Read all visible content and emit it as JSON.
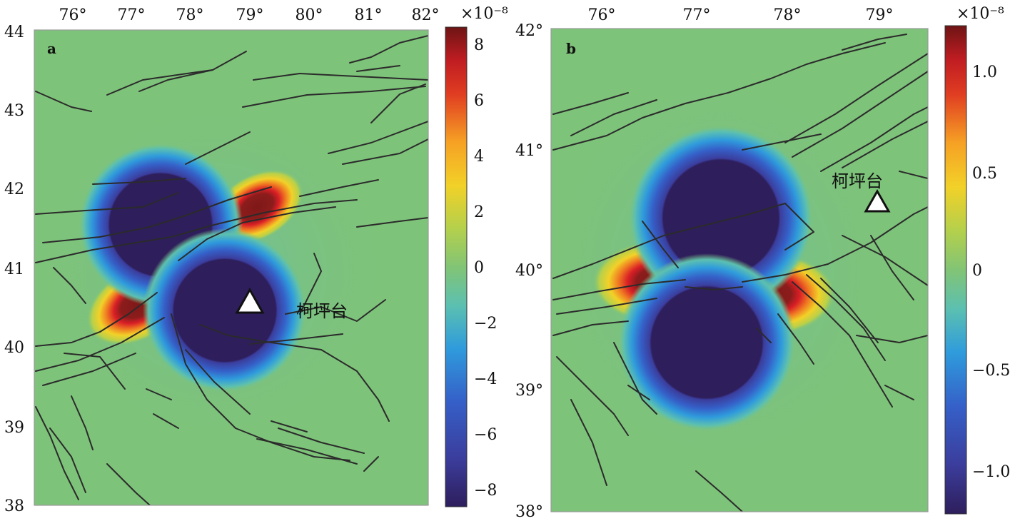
{
  "panels": [
    {
      "letter": "a",
      "lon_ticks": [
        "76°",
        "77°",
        "78°",
        "79°",
        "80°",
        "81°",
        "82°"
      ],
      "lat_ticks": [
        "44",
        "43",
        "42",
        "41",
        "40",
        "39",
        "38"
      ],
      "station": {
        "name": "柯坪台",
        "lon": 79.05,
        "lat": 40.55
      },
      "colorbar": {
        "exponent": "×10⁻⁸",
        "ticks": [
          "8",
          "6",
          "4",
          "2",
          "0",
          "−2",
          "−4",
          "−6",
          "−8"
        ]
      }
    },
    {
      "letter": "b",
      "lon_ticks": [
        "76°",
        "77°",
        "78°",
        "79°"
      ],
      "lat_ticks": [
        "42°",
        "41°",
        "40°",
        "39°",
        "38°"
      ],
      "station": {
        "name": "柯坪台",
        "lon": 79.05,
        "lat": 40.6
      },
      "colorbar": {
        "exponent": "×10⁻⁸",
        "ticks": [
          "1.0",
          "0.5",
          "0",
          "−0.5",
          "−1.0"
        ]
      }
    }
  ],
  "colors": {
    "background": "#7ec37a",
    "colormap": [
      "#2e1e5c",
      "#3b3d9c",
      "#3560c8",
      "#2f8fdc",
      "#35b0d6",
      "#5cc0a8",
      "#8ac771",
      "#c4d345",
      "#f2d128",
      "#f6a124",
      "#ec5a21",
      "#d91f26",
      "#8c1c1c"
    ]
  }
}
